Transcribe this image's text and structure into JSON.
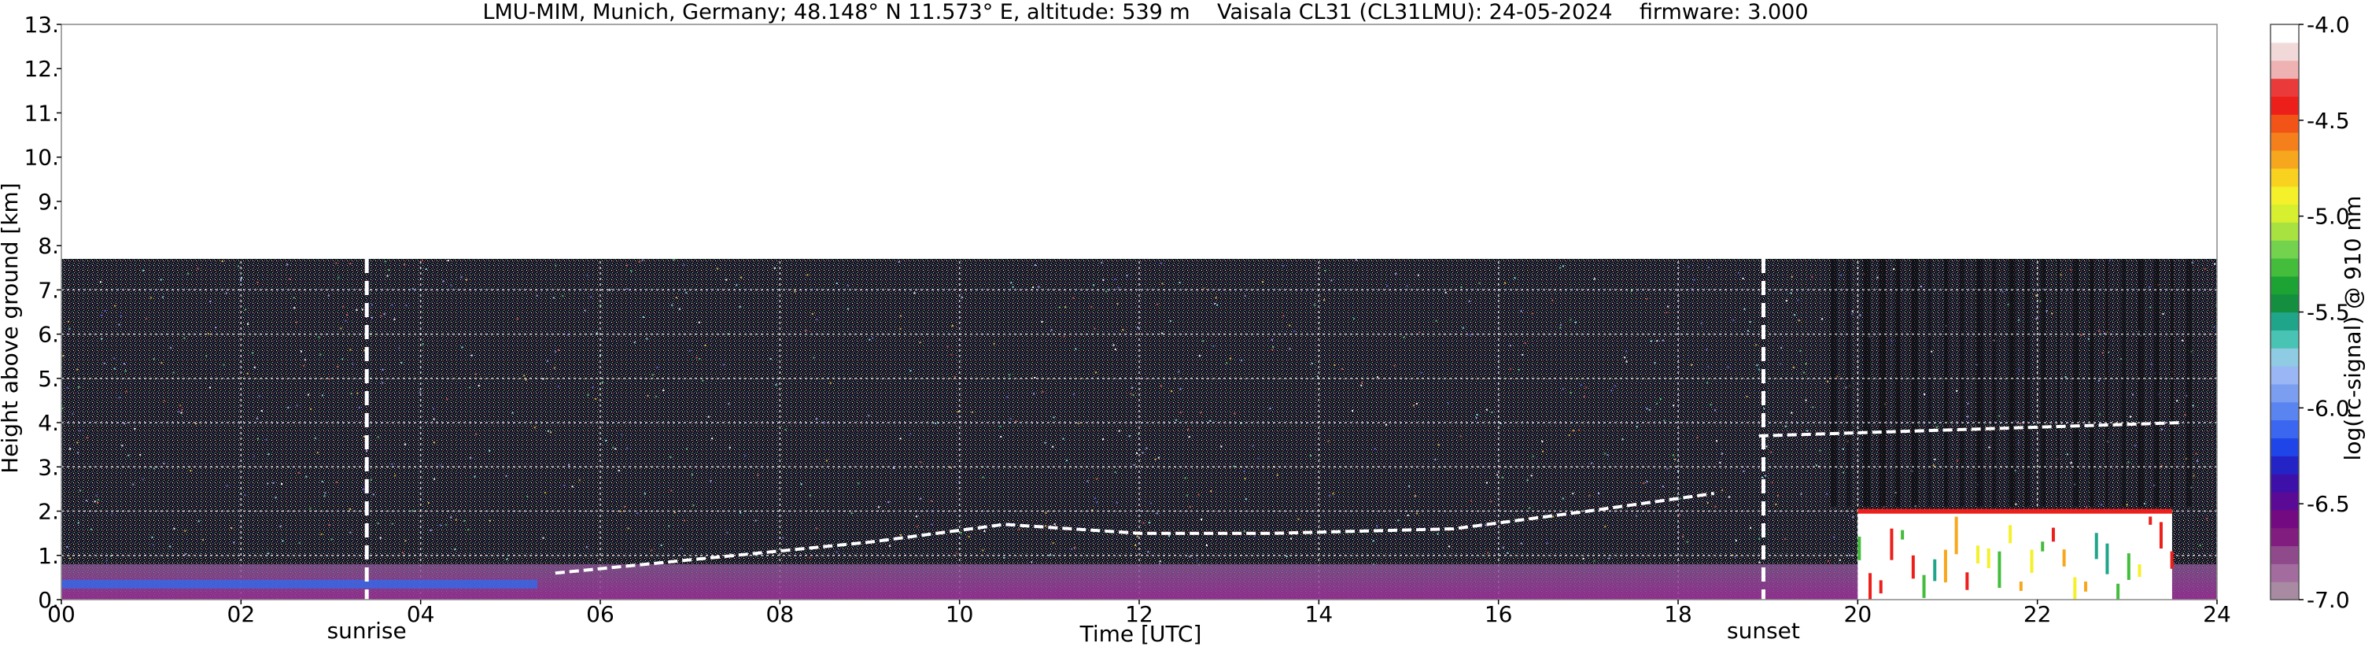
{
  "chart_data": {
    "type": "heatmap",
    "title": "LMU-MIM, Munich, Germany; 48.148° N 11.573° E, altitude: 539 m    Vaisala CL31 (CL31LMU): 24-05-2024    firmware: 3.000",
    "xlabel": "Time [UTC]",
    "ylabel": "Height above ground [km]",
    "xlim": [
      0,
      24
    ],
    "ylim": [
      0,
      13
    ],
    "x_ticks": [
      "00",
      "02",
      "04",
      "06",
      "08",
      "10",
      "12",
      "14",
      "16",
      "18",
      "20",
      "22",
      "24"
    ],
    "x_tick_values": [
      0,
      2,
      4,
      6,
      8,
      10,
      12,
      14,
      16,
      18,
      20,
      22,
      24
    ],
    "y_ticks": [
      "0.",
      "1.",
      "2.",
      "3.",
      "4.",
      "5.",
      "6.",
      "7.",
      "8.",
      "9.",
      "10.",
      "11.",
      "12.",
      "13."
    ],
    "y_tick_values": [
      0,
      1,
      2,
      3,
      4,
      5,
      6,
      7,
      8,
      9,
      10,
      11,
      12,
      13
    ],
    "grid": true,
    "data_top_km": 7.7,
    "annotations": [
      {
        "label": "sunrise",
        "x": 3.4
      },
      {
        "label": "sunset",
        "x": 18.95
      }
    ],
    "colorbar": {
      "label": "log(rc-signal) @ 910 nm",
      "range": [
        -7.0,
        -4.0
      ],
      "ticks": [
        "-4.0",
        "-4.5",
        "-5.0",
        "-5.5",
        "-6.0",
        "-6.5",
        "-7.0"
      ],
      "tick_values": [
        -4.0,
        -4.5,
        -5.0,
        -5.5,
        -6.0,
        -6.5,
        -7.0
      ],
      "colors": [
        "#a88aa3",
        "#a26d9e",
        "#8f4a8c",
        "#801d7e",
        "#730a82",
        "#5b0a96",
        "#3e10aa",
        "#2424c6",
        "#1f44e8",
        "#3a66f0",
        "#5a84ef",
        "#7c9ef1",
        "#9ab6f4",
        "#8fcbe3",
        "#49c3b4",
        "#1fa58a",
        "#138f3f",
        "#1ca333",
        "#43bd3b",
        "#73d24e",
        "#a8e240",
        "#d6ef2e",
        "#f4f02a",
        "#f8d21f",
        "#f7a71d",
        "#f5801b",
        "#f25418",
        "#ec1f1a",
        "#eb3a3a",
        "#efb2b2",
        "#f2d9d9",
        "#ffffff"
      ]
    },
    "features": [
      {
        "name": "boundary layer",
        "x_range": [
          0,
          24
        ],
        "height_km": [
          0,
          0.8
        ]
      },
      {
        "name": "rising aerosol layer top",
        "points": [
          [
            5.5,
            0.6
          ],
          [
            7.5,
            1.0
          ],
          [
            9.0,
            1.3
          ],
          [
            10.5,
            1.7
          ],
          [
            12.0,
            1.5
          ],
          [
            13.5,
            1.5
          ],
          [
            15.5,
            1.6
          ],
          [
            17.0,
            2.0
          ],
          [
            18.4,
            2.4
          ]
        ]
      },
      {
        "name": "evening cloud layer",
        "x_range": [
          20,
          23.5
        ],
        "height_km": [
          0,
          2.0
        ]
      },
      {
        "name": "elevated cloud",
        "points": [
          [
            18.9,
            3.7
          ],
          [
            23.6,
            4.0
          ]
        ]
      }
    ]
  }
}
